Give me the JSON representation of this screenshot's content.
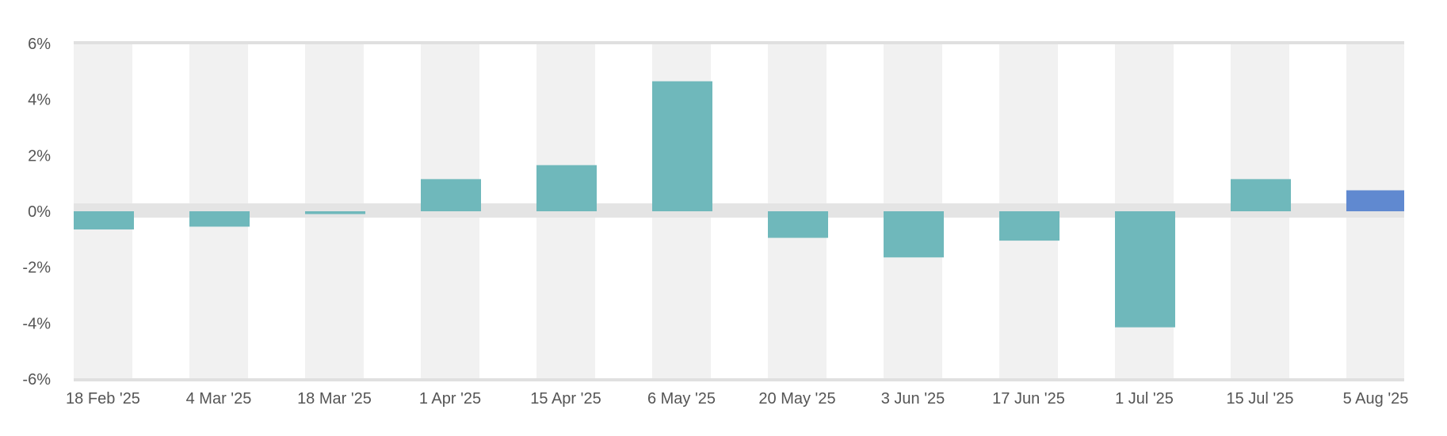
{
  "chart_data": {
    "type": "bar",
    "title": "",
    "xlabel": "",
    "ylabel": "",
    "categories": [
      "18 Feb '25",
      "4 Mar '25",
      "18 Mar '25",
      "1 Apr '25",
      "15 Apr '25",
      "6 May '25",
      "20 May '25",
      "3 Jun '25",
      "17 Jun '25",
      "1 Jul '25",
      "15 Jul '25",
      "5 Aug '25"
    ],
    "values": [
      -0.65,
      -0.55,
      -0.1,
      1.15,
      1.65,
      4.65,
      -0.95,
      -1.65,
      -1.05,
      -4.15,
      1.15,
      0.75
    ],
    "ylim": [
      -6,
      6
    ],
    "yticks": [
      -6,
      -4,
      -2,
      0,
      2,
      4,
      6
    ],
    "ytick_labels": [
      "-6%",
      "-4%",
      "-2%",
      "0%",
      "2%",
      "4%",
      "6%"
    ],
    "grid": false,
    "alternating_column_bands": true,
    "colors": {
      "bar": "#6fb8bb",
      "highlight_bar": "#6089d0",
      "band": "#f1f1f1",
      "zero_band": "#e4e4e4",
      "axis_line": "#e0e0e0",
      "text": "#555555"
    },
    "highlight_index": 11
  }
}
